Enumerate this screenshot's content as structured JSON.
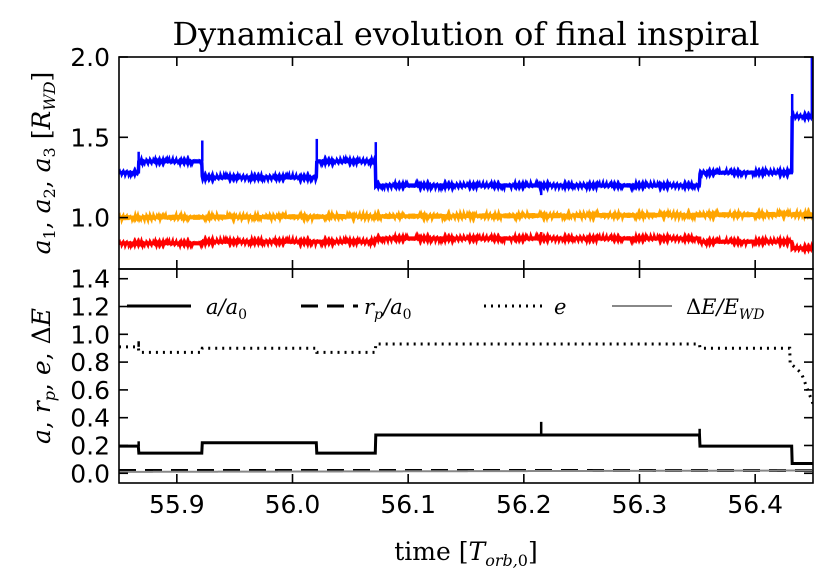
{
  "figure": {
    "title": "Dynamical evolution of final inspiral"
  },
  "chart_data": [
    {
      "type": "line",
      "panel": "top",
      "title": "Dynamical evolution of final inspiral",
      "xlabel": "time [T_orb,0]",
      "ylabel": "a1, a2, a3 [R_WD]",
      "xlim": [
        55.85,
        56.45
      ],
      "ylim": [
        0.68,
        2.0
      ],
      "yticks": [
        "1.0",
        "1.5",
        "2.0"
      ],
      "ytick_values": [
        1.0,
        1.5,
        2.0
      ],
      "series": [
        {
          "name": "a1",
          "color": "#0000ff",
          "amplitude": 0.012,
          "x": [
            55.85,
            55.867,
            55.922,
            56.021,
            56.072,
            56.352,
            56.432,
            56.45
          ],
          "y": [
            1.28,
            1.35,
            1.25,
            1.35,
            1.2,
            1.28,
            1.63,
            1.63
          ],
          "spikes": [
            [
              55.867,
              1.41
            ],
            [
              55.922,
              1.48
            ],
            [
              56.021,
              1.49
            ],
            [
              56.072,
              1.47
            ],
            [
              56.215,
              1.14
            ],
            [
              56.432,
              1.77
            ],
            [
              56.449,
              2.0
            ]
          ]
        },
        {
          "name": "a2",
          "color": "#ffa500",
          "amplitude": 0.016,
          "x": [
            55.85,
            56.45
          ],
          "y": [
            1.0,
            1.02
          ],
          "spikes": []
        },
        {
          "name": "a3",
          "color": "#ff0000",
          "amplitude": 0.012,
          "x": [
            55.85,
            55.922,
            56.072,
            56.352,
            56.432,
            56.45
          ],
          "y": [
            0.84,
            0.85,
            0.87,
            0.85,
            0.81,
            0.81
          ],
          "spikes": [
            [
              56.215,
              0.91
            ]
          ]
        }
      ]
    },
    {
      "type": "line",
      "panel": "bottom",
      "xlabel": "time [T_orb,0]",
      "ylabel": "a, r_p, e, ΔE",
      "xlim": [
        55.85,
        56.45
      ],
      "ylim": [
        -0.07,
        1.47
      ],
      "xticks": [
        "55.9",
        "56.0",
        "56.1",
        "56.2",
        "56.3",
        "56.4"
      ],
      "xtick_values": [
        55.9,
        56.0,
        56.1,
        56.2,
        56.3,
        56.4
      ],
      "yticks": [
        "0.0",
        "0.2",
        "0.4",
        "0.6",
        "0.8",
        "1.0",
        "1.2",
        "1.4"
      ],
      "ytick_values": [
        0.0,
        0.2,
        0.4,
        0.6,
        0.8,
        1.0,
        1.2,
        1.4
      ],
      "legend_position": "top",
      "legend": [
        "a/a₀",
        "r_p/a₀",
        "e",
        "ΔE/E_WD"
      ],
      "series": [
        {
          "name": "a/a0",
          "style": "solid",
          "color": "#000000",
          "x": [
            55.85,
            55.867,
            55.922,
            56.021,
            56.072,
            56.352,
            56.432,
            56.45
          ],
          "y": [
            0.195,
            0.145,
            0.22,
            0.145,
            0.275,
            0.195,
            0.07,
            0.07
          ],
          "spikes": [
            [
              55.867,
              0.23
            ],
            [
              56.215,
              0.37
            ],
            [
              56.352,
              0.32
            ]
          ]
        },
        {
          "name": "r_p/a0",
          "style": "dashed",
          "color": "#000000",
          "x": [
            55.85,
            56.45
          ],
          "y": [
            0.02,
            0.02
          ],
          "spikes": []
        },
        {
          "name": "e",
          "style": "dotted",
          "color": "#000000",
          "x": [
            55.85,
            55.867,
            55.922,
            56.021,
            56.072,
            56.352,
            56.432,
            56.44,
            56.45
          ],
          "y": [
            0.91,
            0.87,
            0.9,
            0.87,
            0.93,
            0.9,
            0.78,
            0.72,
            0.5
          ],
          "spikes": [
            [
              55.867,
              0.95
            ]
          ]
        },
        {
          "name": "ΔE/E_WD",
          "style": "solid",
          "color": "#888888",
          "x": [
            55.85,
            56.45
          ],
          "y": [
            0.01,
            0.02
          ],
          "spikes": []
        }
      ]
    }
  ]
}
